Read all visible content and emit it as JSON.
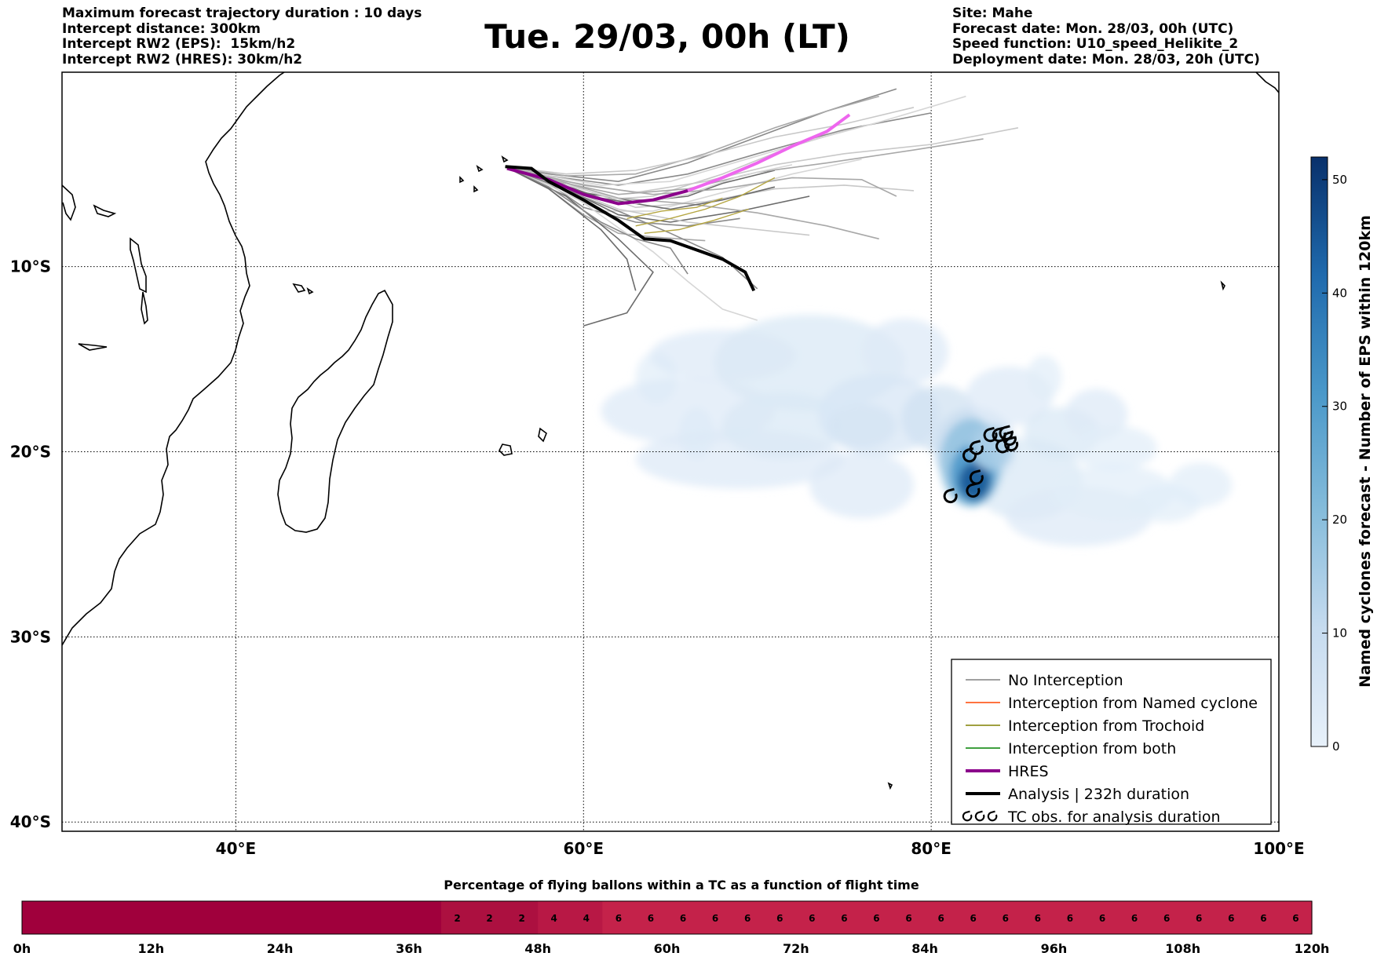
{
  "header_left": [
    "Maximum forecast trajectory duration : 10 days",
    "Intercept distance: 300km",
    "Intercept RW2 (EPS):  15km/h2",
    "Intercept RW2 (HRES): 30km/h2"
  ],
  "header_right": [
    "Site: Mahe",
    "Forecast date: Mon. 28/03, 00h (UTC)",
    "Speed function: U10_speed_Helikite_2",
    "Deployment date: Mon. 28/03, 20h (UTC)"
  ],
  "title": "Tue. 29/03, 00h (LT)",
  "colors": {
    "no_interception": "#808080",
    "named_cyclone": "#ff4500",
    "trochoid": "#808000",
    "both": "#008000",
    "hres": "#8b008b",
    "analysis": "#000000",
    "density_low": "#deebf7",
    "density_high": "#08306b",
    "percent_bar_low": "#a0003c",
    "percent_bar_high": "#c4224a"
  },
  "chart_data": [
    {
      "type": "map",
      "x_range": [
        30,
        100
      ],
      "y_range": [
        -40.5,
        0.5
      ],
      "x_ticks": [
        40,
        60,
        80,
        100
      ],
      "x_tick_labels": [
        "40°E",
        "60°E",
        "80°E",
        "100°E"
      ],
      "y_ticks": [
        -10,
        -20,
        -30,
        -40
      ],
      "y_tick_labels": [
        "10°S",
        "20°S",
        "30°S",
        "40°S"
      ],
      "grid": true,
      "legend_position": "bottom-right",
      "legend": [
        {
          "label": "No Interception",
          "color_key": "no_interception",
          "style": "thin"
        },
        {
          "label": "Interception from Named cyclone",
          "color_key": "named_cyclone",
          "style": "thin"
        },
        {
          "label": "Interception from Trochoid",
          "color_key": "trochoid",
          "style": "thin"
        },
        {
          "label": "Interception from both",
          "color_key": "both",
          "style": "thin"
        },
        {
          "label": "HRES",
          "color_key": "hres",
          "style": "thick"
        },
        {
          "label": "Analysis | 232h duration",
          "color_key": "analysis",
          "style": "thick"
        },
        {
          "label": "TC obs. for analysis duration",
          "color_key": "analysis",
          "style": "tc-symbols"
        }
      ],
      "analysis_track": [
        [
          55.5,
          -4.6
        ],
        [
          57,
          -4.7
        ],
        [
          58,
          -5.4
        ],
        [
          60,
          -6.4
        ],
        [
          62,
          -7.5
        ],
        [
          63.5,
          -8.5
        ],
        [
          65,
          -8.6
        ],
        [
          66.5,
          -9.1
        ],
        [
          68,
          -9.6
        ],
        [
          69.3,
          -10.3
        ],
        [
          69.8,
          -11.3
        ]
      ],
      "hres_track": [
        [
          55.6,
          -4.7
        ],
        [
          58,
          -5.3
        ],
        [
          60,
          -6.1
        ],
        [
          62,
          -6.6
        ],
        [
          64,
          -6.4
        ],
        [
          66,
          -5.9
        ],
        [
          68,
          -5.2
        ],
        [
          70,
          -4.4
        ],
        [
          72,
          -3.5
        ],
        [
          74,
          -2.7
        ],
        [
          75.3,
          -1.8
        ]
      ],
      "eps_tracks": [
        [
          [
            55.5,
            -4.6
          ],
          [
            58,
            -5.2
          ],
          [
            60,
            -6
          ],
          [
            63,
            -6.5
          ],
          [
            66,
            -6.2
          ],
          [
            68,
            -5.5
          ],
          [
            71,
            -4.8
          ]
        ],
        [
          [
            55.5,
            -4.6
          ],
          [
            58,
            -5.5
          ],
          [
            60,
            -6.8
          ],
          [
            63,
            -7.6
          ],
          [
            66,
            -7.8
          ],
          [
            69,
            -7.4
          ]
        ],
        [
          [
            55.5,
            -4.6
          ],
          [
            58,
            -5.8
          ],
          [
            60,
            -7.2
          ],
          [
            62,
            -8.2
          ],
          [
            64,
            -8.4
          ],
          [
            67,
            -8.6
          ]
        ],
        [
          [
            55.5,
            -4.6
          ],
          [
            58,
            -5.4
          ],
          [
            61,
            -6.4
          ],
          [
            64,
            -6.2
          ],
          [
            68,
            -5
          ],
          [
            72,
            -3.5
          ],
          [
            76,
            -2.4
          ]
        ],
        [
          [
            55.5,
            -4.6
          ],
          [
            58,
            -5.6
          ],
          [
            61,
            -7
          ],
          [
            64,
            -7
          ],
          [
            68,
            -6
          ],
          [
            72,
            -5
          ],
          [
            76,
            -4.2
          ]
        ],
        [
          [
            55.5,
            -4.6
          ],
          [
            59,
            -5.8
          ],
          [
            62,
            -7.2
          ],
          [
            65,
            -7.6
          ],
          [
            69,
            -7
          ],
          [
            73,
            -6.2
          ]
        ],
        [
          [
            55.5,
            -4.6
          ],
          [
            58,
            -5.1
          ],
          [
            62,
            -5.6
          ],
          [
            66,
            -5
          ],
          [
            70,
            -3.9
          ],
          [
            75,
            -2.6
          ],
          [
            80,
            -1.7
          ]
        ],
        [
          [
            55.5,
            -4.6
          ],
          [
            58,
            -5.3
          ],
          [
            62,
            -6.1
          ],
          [
            66,
            -5.8
          ],
          [
            70,
            -4.9
          ],
          [
            74,
            -4.4
          ],
          [
            79,
            -3.7
          ],
          [
            83,
            -3.1
          ]
        ],
        [
          [
            55.5,
            -4.6
          ],
          [
            59,
            -5.5
          ],
          [
            63,
            -6.8
          ],
          [
            67,
            -6.5
          ],
          [
            71,
            -5.8
          ],
          [
            75,
            -5.6
          ],
          [
            79,
            -5.9
          ]
        ],
        [
          [
            55.5,
            -4.6
          ],
          [
            59,
            -5.9
          ],
          [
            62,
            -7.9
          ],
          [
            64,
            -9.2
          ],
          [
            66,
            -10.8
          ],
          [
            68,
            -12.3
          ],
          [
            70,
            -12.9
          ]
        ],
        [
          [
            55.5,
            -4.6
          ],
          [
            59,
            -6.2
          ],
          [
            62,
            -8.5
          ],
          [
            64,
            -10.3
          ],
          [
            62.5,
            -12.5
          ],
          [
            60,
            -13.2
          ]
        ],
        [
          [
            55.5,
            -4.6
          ],
          [
            58,
            -5
          ],
          [
            62,
            -5.4
          ],
          [
            66,
            -4.4
          ],
          [
            70,
            -3
          ],
          [
            74,
            -1.6
          ],
          [
            78,
            -0.4
          ]
        ],
        [
          [
            55.5,
            -4.6
          ],
          [
            58,
            -5.2
          ],
          [
            62,
            -6.3
          ],
          [
            66,
            -6.6
          ],
          [
            70,
            -7.1
          ],
          [
            74,
            -7.8
          ],
          [
            77,
            -8.5
          ]
        ],
        [
          [
            55.5,
            -4.6
          ],
          [
            58,
            -5.4
          ],
          [
            62,
            -6.9
          ],
          [
            66,
            -7.6
          ],
          [
            70,
            -8
          ],
          [
            73,
            -8.3
          ]
        ],
        [
          [
            55.5,
            -4.6
          ],
          [
            58,
            -5.1
          ],
          [
            61,
            -5.6
          ],
          [
            65,
            -5.4
          ],
          [
            69,
            -4.3
          ],
          [
            73,
            -3.2
          ],
          [
            77,
            -2.2
          ],
          [
            82,
            -0.8
          ]
        ],
        [
          [
            55.5,
            -4.6
          ],
          [
            58,
            -5.3
          ],
          [
            61,
            -6.3
          ],
          [
            65,
            -6.9
          ],
          [
            68,
            -6.4
          ],
          [
            71,
            -5.7
          ]
        ],
        [
          [
            55.5,
            -4.6
          ],
          [
            58,
            -5.7
          ],
          [
            61,
            -7.6
          ],
          [
            63,
            -8.5
          ],
          [
            65,
            -9
          ],
          [
            66,
            -10.4
          ]
        ],
        [
          [
            55.5,
            -4.6
          ],
          [
            59,
            -5.1
          ],
          [
            63,
            -5
          ],
          [
            67,
            -3.9
          ],
          [
            71,
            -2.5
          ],
          [
            74,
            -1.6
          ],
          [
            77,
            -0.8
          ]
        ],
        [
          [
            55.5,
            -4.6
          ],
          [
            59,
            -5.4
          ],
          [
            63,
            -6
          ],
          [
            67,
            -5.4
          ],
          [
            71,
            -4.5
          ],
          [
            75,
            -3.9
          ],
          [
            80,
            -3.4
          ],
          [
            85,
            -2.5
          ]
        ],
        [
          [
            55.5,
            -4.6
          ],
          [
            59,
            -5.6
          ],
          [
            63,
            -6.6
          ],
          [
            66,
            -6.1
          ],
          [
            69,
            -5.1
          ],
          [
            72,
            -4.5
          ]
        ],
        [
          [
            55.5,
            -4.6
          ],
          [
            58,
            -5.8
          ],
          [
            61,
            -8
          ],
          [
            62.5,
            -9.6
          ],
          [
            63,
            -11.3
          ]
        ],
        [
          [
            55.5,
            -4.6
          ],
          [
            58,
            -5.5
          ],
          [
            62,
            -7
          ],
          [
            65,
            -8.2
          ],
          [
            68,
            -9.5
          ],
          [
            70,
            -11.2
          ]
        ],
        [
          [
            55.5,
            -4.6
          ],
          [
            60,
            -5.6
          ],
          [
            64,
            -6.1
          ],
          [
            68,
            -5.8
          ],
          [
            72,
            -5.2
          ],
          [
            76,
            -5.3
          ],
          [
            78,
            -6.2
          ]
        ],
        [
          [
            55.5,
            -4.6
          ],
          [
            59,
            -5
          ],
          [
            63,
            -4.8
          ],
          [
            67,
            -4
          ],
          [
            71,
            -3
          ],
          [
            75,
            -2.3
          ],
          [
            79,
            -1.4
          ]
        ]
      ],
      "trochoid_tracks": [
        [
          [
            63,
            -7.8
          ],
          [
            65,
            -7.4
          ],
          [
            67,
            -6.9
          ],
          [
            69,
            -6.2
          ],
          [
            71,
            -5.2
          ]
        ],
        [
          [
            63.5,
            -8.2
          ],
          [
            65.5,
            -8
          ],
          [
            67.5,
            -7.5
          ],
          [
            69.5,
            -6.9
          ]
        ],
        [
          [
            62.5,
            -7.4
          ],
          [
            64.5,
            -7
          ],
          [
            66.5,
            -6.8
          ],
          [
            68,
            -6.3
          ]
        ]
      ],
      "density_blobs": [
        {
          "lon": 64.2,
          "lat": -16.0,
          "rlon": 1.2,
          "rlat": 1.4,
          "count": 2
        },
        {
          "lon": 66.5,
          "lat": -19.0,
          "rlon": 1.0,
          "rlat": 1.4,
          "count": 2
        },
        {
          "lon": 68.0,
          "lat": -14.8,
          "rlon": 4.2,
          "rlat": 1.4,
          "count": 3
        },
        {
          "lon": 66.0,
          "lat": -17.8,
          "rlon": 5.0,
          "rlat": 1.8,
          "count": 3
        },
        {
          "lon": 69.0,
          "lat": -20.4,
          "rlon": 6.0,
          "rlat": 1.6,
          "count": 3
        },
        {
          "lon": 73.0,
          "lat": -15.2,
          "rlon": 5.5,
          "rlat": 2.6,
          "count": 4
        },
        {
          "lon": 71.5,
          "lat": -18.6,
          "rlon": 3.5,
          "rlat": 1.8,
          "count": 4
        },
        {
          "lon": 76.0,
          "lat": -21.8,
          "rlon": 3.0,
          "rlat": 1.8,
          "count": 3
        },
        {
          "lon": 78.5,
          "lat": -14.6,
          "rlon": 2.5,
          "rlat": 1.8,
          "count": 3
        },
        {
          "lon": 77.0,
          "lat": -18.0,
          "rlon": 3.5,
          "rlat": 2.2,
          "count": 5
        },
        {
          "lon": 76.0,
          "lat": -18.6,
          "rlon": 2.0,
          "rlat": 1.2,
          "count": 6
        },
        {
          "lon": 80.5,
          "lat": -18.2,
          "rlon": 2.2,
          "rlat": 1.8,
          "count": 7
        },
        {
          "lon": 82.5,
          "lat": -19.8,
          "rlon": 2.4,
          "rlat": 2.2,
          "count": 9
        },
        {
          "lon": 84.5,
          "lat": -17.0,
          "rlon": 2.5,
          "rlat": 1.6,
          "count": 3
        },
        {
          "lon": 86.5,
          "lat": -16.0,
          "rlon": 1.0,
          "rlat": 1.2,
          "count": 2
        },
        {
          "lon": 85.5,
          "lat": -21.5,
          "rlon": 3.2,
          "rlat": 2.2,
          "count": 4
        },
        {
          "lon": 87.5,
          "lat": -19.0,
          "rlon": 2.2,
          "rlat": 1.4,
          "count": 4
        },
        {
          "lon": 89.5,
          "lat": -18.0,
          "rlon": 1.8,
          "rlat": 1.4,
          "count": 3
        },
        {
          "lon": 90.5,
          "lat": -19.8,
          "rlon": 2.5,
          "rlat": 1.2,
          "count": 2
        },
        {
          "lon": 88.5,
          "lat": -23.5,
          "rlon": 4.2,
          "rlat": 1.6,
          "count": 3
        },
        {
          "lon": 90.5,
          "lat": -22.2,
          "rlon": 3.5,
          "rlat": 1.5,
          "count": 2
        },
        {
          "lon": 93.5,
          "lat": -22.8,
          "rlon": 2.0,
          "rlat": 1.0,
          "count": 2
        },
        {
          "lon": 95.5,
          "lat": -21.8,
          "rlon": 1.8,
          "rlat": 1.2,
          "count": 2
        },
        {
          "lon": 82.3,
          "lat": -20.6,
          "rlon": 1.8,
          "rlat": 2.4,
          "count": 18
        },
        {
          "lon": 82.4,
          "lat": -21.2,
          "rlon": 1.3,
          "rlat": 1.6,
          "count": 30
        },
        {
          "lon": 82.5,
          "lat": -21.6,
          "rlon": 0.9,
          "rlat": 1.0,
          "count": 45
        },
        {
          "lon": 83.5,
          "lat": -19.8,
          "rlon": 1.2,
          "rlat": 1.2,
          "count": 14
        }
      ],
      "tc_obs": [
        [
          81.1,
          -22.4
        ],
        [
          82.4,
          -22.1
        ],
        [
          82.6,
          -21.4
        ],
        [
          82.2,
          -20.2
        ],
        [
          82.6,
          -19.8
        ],
        [
          83.4,
          -19.1
        ],
        [
          83.9,
          -19.1
        ],
        [
          84.5,
          -19.3
        ],
        [
          84.1,
          -19.7
        ],
        [
          84.6,
          -19.6
        ],
        [
          84.3,
          -19.0
        ]
      ]
    },
    {
      "type": "heatmap-colorbar",
      "label": "Named cyclones forecast - Number of EPS within 120km",
      "range": [
        0,
        52
      ],
      "ticks": [
        0,
        10,
        20,
        30,
        40,
        50
      ]
    },
    {
      "type": "bar",
      "title": "Percentage of flying ballons within a TC as a function of flight time",
      "x_range": [
        0,
        120
      ],
      "x_ticks": [
        "0h",
        "12h",
        "24h",
        "36h",
        "48h",
        "60h",
        "72h",
        "84h",
        "96h",
        "108h",
        "120h"
      ],
      "cell_hours": 3,
      "values": [
        0,
        0,
        0,
        0,
        0,
        0,
        0,
        0,
        0,
        0,
        0,
        0,
        0,
        2,
        2,
        2,
        4,
        4,
        6,
        6,
        6,
        6,
        6,
        6,
        6,
        6,
        6,
        6,
        6,
        6,
        6,
        6,
        6,
        6,
        6,
        6,
        6,
        6,
        6,
        6
      ]
    }
  ]
}
